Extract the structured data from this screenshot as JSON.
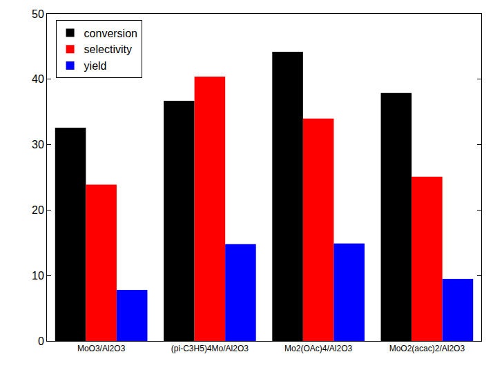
{
  "chart_data": {
    "type": "bar",
    "categories": [
      "MoO3/Al2O3",
      "(pi-C3H5)4Mo/Al2O3",
      "Mo2(OAc)4/Al2O3",
      "MoO2(acac)2/Al2O3"
    ],
    "series": [
      {
        "name": "conversion",
        "color": "#000000",
        "values": [
          32.6,
          36.7,
          44.2,
          37.9
        ]
      },
      {
        "name": "selectivity",
        "color": "#ff0000",
        "values": [
          23.9,
          40.4,
          34.0,
          25.1
        ]
      },
      {
        "name": "yield",
        "color": "#0000ff",
        "values": [
          7.8,
          14.8,
          14.9,
          9.5
        ]
      }
    ],
    "ylim": [
      0,
      50
    ],
    "yticks": [
      0,
      10,
      20,
      30,
      40,
      50
    ],
    "grid": false,
    "legend": "upper left"
  }
}
